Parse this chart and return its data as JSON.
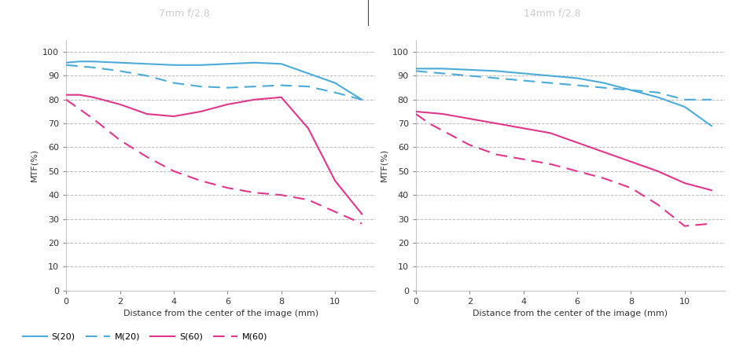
{
  "title_left": "7mm f/2.8",
  "title_right": "14mm f/2.8",
  "xlabel": "Distance from the center of the image (mm)",
  "ylabel": "MTF(%)",
  "xlim": [
    0,
    11.5
  ],
  "ylim": [
    0,
    105
  ],
  "yticks": [
    0,
    10,
    20,
    30,
    40,
    50,
    60,
    70,
    80,
    90,
    100
  ],
  "xticks": [
    0,
    2,
    4,
    6,
    8,
    10
  ],
  "color_blue": "#4AABDB",
  "color_pink": "#E0368C",
  "header_bg": "#111111",
  "header_text": "#cccccc",
  "left": {
    "S20_x": [
      0,
      0.5,
      1,
      2,
      3,
      4,
      5,
      6,
      7,
      8,
      9,
      10,
      11
    ],
    "S20_y": [
      95.5,
      96,
      96,
      95.5,
      95,
      94.5,
      94.5,
      95,
      95.5,
      95,
      91,
      87,
      80
    ],
    "M20_x": [
      0,
      0.5,
      1,
      2,
      3,
      4,
      5,
      6,
      7,
      8,
      9,
      10,
      11
    ],
    "M20_y": [
      94.5,
      94,
      93.5,
      92,
      90,
      87,
      85.5,
      85,
      85.5,
      86,
      85.5,
      83,
      80
    ],
    "S60_x": [
      0,
      0.5,
      1,
      2,
      3,
      4,
      5,
      6,
      7,
      8,
      9,
      10,
      11
    ],
    "S60_y": [
      82,
      82,
      81,
      78,
      74,
      73,
      75,
      78,
      80,
      81,
      68,
      46,
      32
    ],
    "M60_x": [
      0,
      0.5,
      1,
      2,
      3,
      4,
      5,
      6,
      7,
      8,
      9,
      10,
      11
    ],
    "M60_y": [
      80,
      76,
      72,
      63,
      56,
      50,
      46,
      43,
      41,
      40,
      38,
      33,
      28
    ]
  },
  "right": {
    "S20_x": [
      0,
      0.5,
      1,
      2,
      3,
      4,
      5,
      6,
      7,
      8,
      9,
      10,
      11
    ],
    "S20_y": [
      93,
      93,
      93,
      92.5,
      92,
      91,
      90,
      89,
      87,
      84,
      81,
      77,
      69
    ],
    "M20_x": [
      0,
      0.5,
      1,
      2,
      3,
      4,
      5,
      6,
      7,
      8,
      9,
      10,
      11
    ],
    "M20_y": [
      92,
      91.5,
      91,
      90,
      89,
      88,
      87,
      86,
      85,
      84,
      83,
      80,
      80
    ],
    "S60_x": [
      0,
      0.5,
      1,
      2,
      3,
      4,
      5,
      6,
      7,
      8,
      9,
      10,
      11
    ],
    "S60_y": [
      75,
      74.5,
      74,
      72,
      70,
      68,
      66,
      62,
      58,
      54,
      50,
      45,
      42
    ],
    "M60_x": [
      0,
      0.5,
      1,
      2,
      3,
      4,
      5,
      6,
      7,
      8,
      9,
      10,
      11
    ],
    "M60_y": [
      74,
      70,
      67,
      61,
      57,
      55,
      53,
      50,
      47,
      43,
      36,
      27,
      28
    ]
  }
}
